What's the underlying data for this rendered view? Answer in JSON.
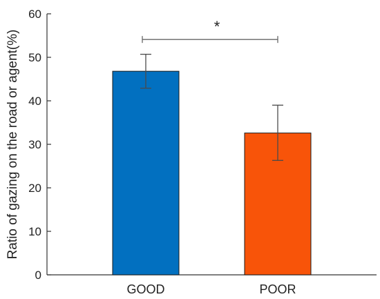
{
  "chart_data": {
    "type": "bar",
    "title": "",
    "xlabel": "",
    "ylabel": "Ratio of gazing on the road or agent(%)",
    "ylim": [
      0,
      60
    ],
    "yticks": [
      0,
      10,
      20,
      30,
      40,
      50,
      60
    ],
    "categories": [
      "GOOD",
      "POOR"
    ],
    "values": [
      46.8,
      32.6
    ],
    "error": [
      [
        42.9,
        50.7
      ],
      [
        26.3,
        39.0
      ]
    ],
    "bar_colors": [
      "#0270c0",
      "#f85409"
    ],
    "significance": {
      "between": [
        "GOOD",
        "POOR"
      ],
      "label": "*",
      "y": 54.1
    },
    "grid": false
  }
}
